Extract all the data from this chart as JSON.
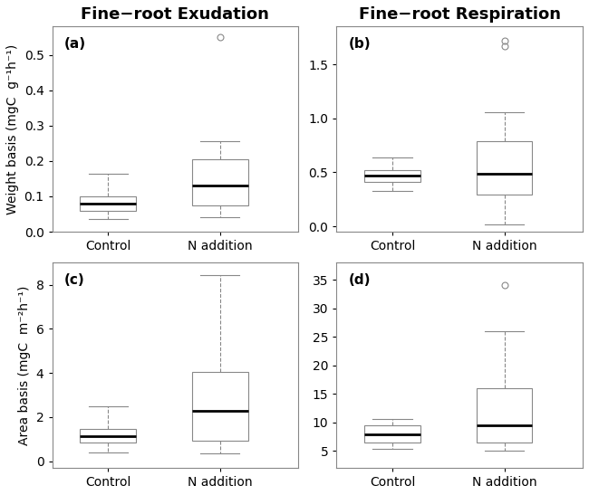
{
  "panels": [
    {
      "label": "(a)",
      "title": "Fine−root Exudation",
      "ylabel": "Weight basis (mgC  g⁻¹h⁻¹)",
      "ylim": [
        0.0,
        0.58
      ],
      "yticks": [
        0.0,
        0.1,
        0.2,
        0.3,
        0.4,
        0.5
      ],
      "boxes": [
        {
          "group": "Control",
          "q1": 0.06,
          "median": 0.08,
          "q3": 0.1,
          "whisker_low": 0.035,
          "whisker_high": 0.165,
          "outliers": []
        },
        {
          "group": "N addition",
          "q1": 0.075,
          "median": 0.13,
          "q3": 0.205,
          "whisker_low": 0.04,
          "whisker_high": 0.255,
          "outliers": [
            0.55
          ]
        }
      ]
    },
    {
      "label": "(b)",
      "title": "Fine−root Respiration",
      "ylabel": null,
      "ylim": [
        -0.05,
        1.85
      ],
      "yticks": [
        0.0,
        0.5,
        1.0,
        1.5
      ],
      "boxes": [
        {
          "group": "Control",
          "q1": 0.41,
          "median": 0.47,
          "q3": 0.52,
          "whisker_low": 0.325,
          "whisker_high": 0.635,
          "outliers": []
        },
        {
          "group": "N addition",
          "q1": 0.29,
          "median": 0.49,
          "q3": 0.79,
          "whisker_low": 0.02,
          "whisker_high": 1.06,
          "outliers": [
            1.67,
            1.72
          ]
        }
      ]
    },
    {
      "label": "(c)",
      "title": null,
      "ylabel": "Area basis (mgC  m⁻²h⁻¹)",
      "ylim": [
        -0.3,
        9.0
      ],
      "yticks": [
        0,
        2,
        4,
        6,
        8
      ],
      "boxes": [
        {
          "group": "Control",
          "q1": 0.85,
          "median": 1.15,
          "q3": 1.45,
          "whisker_low": 0.4,
          "whisker_high": 2.5,
          "outliers": []
        },
        {
          "group": "N addition",
          "q1": 0.95,
          "median": 2.3,
          "q3": 4.05,
          "whisker_low": 0.35,
          "whisker_high": 8.45,
          "outliers": []
        }
      ]
    },
    {
      "label": "(d)",
      "title": null,
      "ylabel": null,
      "ylim": [
        2.0,
        38.0
      ],
      "yticks": [
        5,
        10,
        15,
        20,
        25,
        30,
        35
      ],
      "boxes": [
        {
          "group": "Control",
          "q1": 6.5,
          "median": 7.8,
          "q3": 9.5,
          "whisker_low": 5.3,
          "whisker_high": 10.5,
          "outliers": []
        },
        {
          "group": "N addition",
          "q1": 6.5,
          "median": 9.5,
          "q3": 16.0,
          "whisker_low": 5.0,
          "whisker_high": 26.0,
          "outliers": [
            34.0
          ]
        }
      ]
    }
  ],
  "box_width": 0.5,
  "box_color": "white",
  "box_edge_color": "#888888",
  "median_color": "black",
  "whisker_color": "#888888",
  "outlier_color": "#888888",
  "background_color": "white",
  "fontsize_title": 13,
  "fontsize_label": 10,
  "fontsize_tick": 10,
  "fontsize_panel_label": 11
}
